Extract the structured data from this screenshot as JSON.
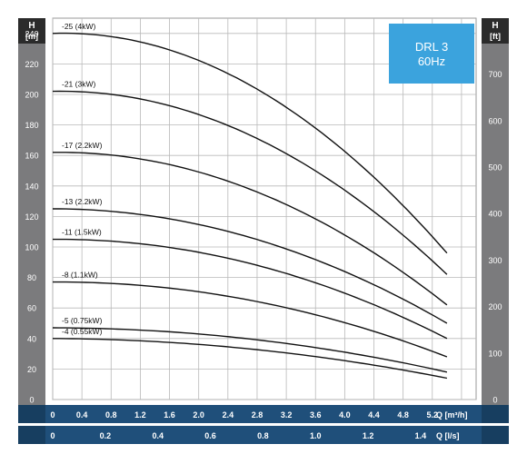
{
  "chart_data": {
    "type": "line",
    "title": "DRL 3",
    "subtitle": "60Hz",
    "left_axis": {
      "unit_top": "H",
      "unit_bottom": "[m]",
      "range": [
        0,
        250
      ],
      "ticks": [
        "0",
        "20",
        "40",
        "60",
        "80",
        "100",
        "120",
        "140",
        "160",
        "180",
        "200",
        "220",
        "240"
      ]
    },
    "right_axis": {
      "unit_top": "H",
      "unit_bottom": "[ft]",
      "ticks": [
        "0",
        "100",
        "200",
        "300",
        "400",
        "500",
        "600",
        "700"
      ]
    },
    "x_axis_q_m3h": {
      "label": "Q [m³/h]",
      "range": [
        0,
        5.8
      ],
      "ticks": [
        "0",
        "0.4",
        "0.8",
        "1.2",
        "1.6",
        "2.0",
        "2.4",
        "2.8",
        "3.2",
        "3.6",
        "4.0",
        "4.4",
        "4.8",
        "5.2"
      ]
    },
    "x_axis_q_ls": {
      "label": "Q [l/s]",
      "ticks": [
        "0",
        "0.2",
        "0.4",
        "0.6",
        "0.8",
        "1.0",
        "1.2",
        "1.4"
      ]
    },
    "grid": true,
    "series": [
      {
        "name": "-25 (4kW)",
        "x": [
          0,
          1.4,
          5.4
        ],
        "y": [
          240,
          232,
          96
        ]
      },
      {
        "name": "-21 (3kW)",
        "x": [
          0,
          1.4,
          5.4
        ],
        "y": [
          202,
          195,
          82
        ]
      },
      {
        "name": "-17 (2.2kW)",
        "x": [
          0,
          1.4,
          5.4
        ],
        "y": [
          162,
          156,
          62
        ]
      },
      {
        "name": "-13 (2.2kW)",
        "x": [
          0,
          1.4,
          5.4
        ],
        "y": [
          125,
          120,
          50
        ]
      },
      {
        "name": "-11 (1.5kW)",
        "x": [
          0,
          1.4,
          5.4
        ],
        "y": [
          105,
          101,
          40
        ]
      },
      {
        "name": "-8 (1.1kW)",
        "x": [
          0,
          1.4,
          5.4
        ],
        "y": [
          77,
          74,
          28
        ]
      },
      {
        "name": "-5 (0.75kW)",
        "x": [
          0,
          1.4,
          5.4
        ],
        "y": [
          47,
          45,
          18
        ]
      },
      {
        "name": "-4 (0.55kW)",
        "x": [
          0,
          1.4,
          5.4
        ],
        "y": [
          40,
          38,
          14
        ]
      }
    ]
  },
  "colors": {
    "side_bar": "#7b7b7d",
    "bottom_band": "#1f4f7a",
    "label_box": "#3ba3dd",
    "unit_box": "#2b2b2b",
    "curve": "#111111",
    "grid": "#b9b9b9"
  }
}
